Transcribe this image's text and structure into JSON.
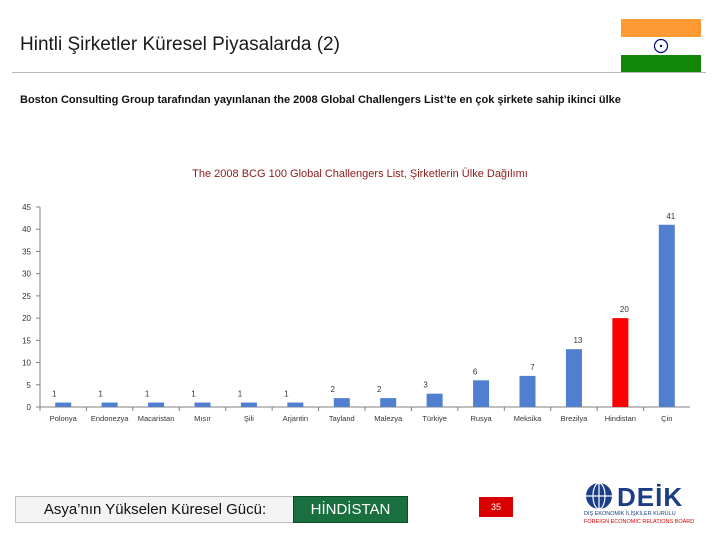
{
  "slide": {
    "title": "Hintli Şirketler Küresel Piyasalarda (2)",
    "subtitle": "Boston Consulting Group tarafından yayınlanan the 2008 Global Challengers List’te en çok şirkete sahip ikinci ülke",
    "footer_left": "Asya’nın Yükselen Küresel Gücü:",
    "footer_right": "HİNDİSTAN",
    "page_number": "35",
    "logo_text": "DEİK",
    "logo_sub1": "DIŞ EKONOMİK İLİŞKİLER KURULU",
    "logo_sub2": "FOREIGN ECONOMIC RELATIONS BOARD"
  },
  "colors": {
    "bar": "#4f7fce",
    "highlight": "#ff0000",
    "flag_saffron": "#ff9933",
    "flag_green": "#138808",
    "chakra": "#000080"
  },
  "chart_data": {
    "type": "bar",
    "title": "The 2008 BCG 100 Global Challengers List, Şirketlerin Ülke Dağılımı",
    "categories": [
      "Polonya",
      "Endonezya",
      "Macaristan",
      "Mısır",
      "Şili",
      "Arjantin",
      "Tayland",
      "Malezya",
      "Türkiye",
      "Rusya",
      "Meksika",
      "Brezilya",
      "Hindistan",
      "Çin"
    ],
    "values": [
      1,
      1,
      1,
      1,
      1,
      1,
      2,
      2,
      3,
      6,
      7,
      13,
      20,
      41
    ],
    "highlight_category": "Hindistan",
    "ylim": [
      0,
      45
    ],
    "yticks": [
      0,
      5,
      10,
      15,
      20,
      25,
      30,
      35,
      40,
      45
    ],
    "grid": false,
    "legend": "none"
  }
}
